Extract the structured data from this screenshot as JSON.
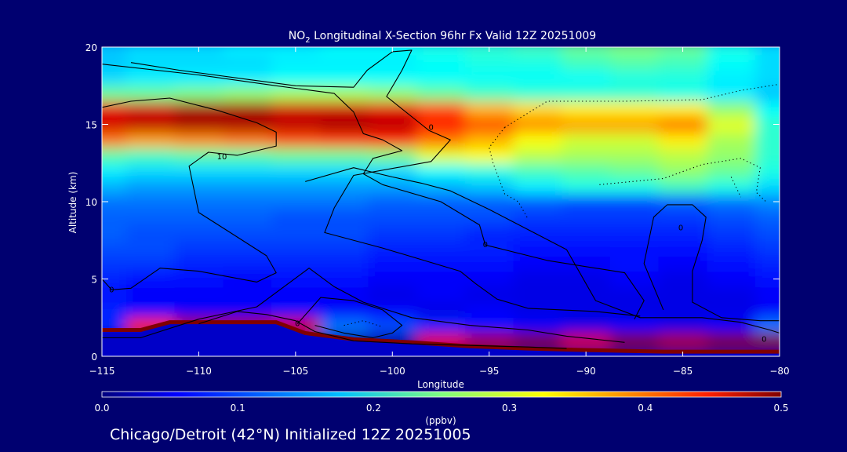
{
  "title": {
    "prefix": "NO",
    "sub": "2",
    "rest": " Longitudinal X-Section 96hr  Fx Valid 12Z 20251009"
  },
  "footer": "Chicago/Detroit (42°N) Initialized 12Z 20251005",
  "chart_data": {
    "type": "heatmap",
    "xlabel": "Longitude",
    "ylabel": "Altitude (km)",
    "xlim": [
      -115,
      -80
    ],
    "ylim": [
      0,
      20
    ],
    "x_ticks": [
      -115,
      -110,
      -105,
      -100,
      -95,
      -90,
      -85,
      -80
    ],
    "x_tick_labels": [
      "−115",
      "−110",
      "−105",
      "−100",
      "−95",
      "−90",
      "−85",
      "−80"
    ],
    "y_ticks": [
      0,
      5,
      10,
      15,
      20
    ],
    "y_tick_labels": [
      "0",
      "5",
      "10",
      "15",
      "20"
    ],
    "colorbar": {
      "label": "(ppbv)",
      "range": [
        0,
        0.5
      ],
      "ticks": [
        0,
        0.1,
        0.2,
        0.3,
        0.4,
        0.5
      ],
      "tick_labels": [
        "0.0",
        "0.1",
        "0.2",
        "0.3",
        "0.4",
        "0.5"
      ],
      "colormap": "jet"
    },
    "lon_grid": [
      -115,
      -112.5,
      -110,
      -107.5,
      -105,
      -102.5,
      -100,
      -97.5,
      -95,
      -92.5,
      -90,
      -87.5,
      -85,
      -82.5,
      -80
    ],
    "alt_grid": [
      0,
      1,
      2,
      3,
      4,
      5,
      6,
      7,
      8,
      9,
      10,
      11,
      12,
      13,
      14,
      15,
      16,
      17,
      18,
      19,
      20
    ],
    "no2_ppbv": [
      [
        0.02,
        0.02,
        0.02,
        0.02,
        0.02,
        0.02,
        0.02,
        0.02,
        0.02,
        0.02,
        0.02,
        0.02,
        0.02,
        0.02,
        0.02
      ],
      [
        0.02,
        0.02,
        0.02,
        0.02,
        0.02,
        0.02,
        0.02,
        0.45,
        0.48,
        0.5,
        0.46,
        0.5,
        0.48,
        0.5,
        0.5
      ],
      [
        0.08,
        0.42,
        0.48,
        0.48,
        0.46,
        0.12,
        0.1,
        0.08,
        0.07,
        0.06,
        0.05,
        0.06,
        0.05,
        0.06,
        0.12
      ],
      [
        0.08,
        0.07,
        0.06,
        0.06,
        0.07,
        0.06,
        0.06,
        0.05,
        0.06,
        0.05,
        0.05,
        0.05,
        0.05,
        0.05,
        0.06
      ],
      [
        0.07,
        0.06,
        0.06,
        0.06,
        0.06,
        0.06,
        0.05,
        0.06,
        0.05,
        0.05,
        0.05,
        0.05,
        0.05,
        0.05,
        0.06
      ],
      [
        0.08,
        0.07,
        0.07,
        0.06,
        0.07,
        0.07,
        0.06,
        0.06,
        0.06,
        0.05,
        0.05,
        0.06,
        0.05,
        0.06,
        0.07
      ],
      [
        0.09,
        0.09,
        0.08,
        0.08,
        0.08,
        0.08,
        0.07,
        0.07,
        0.07,
        0.06,
        0.06,
        0.07,
        0.06,
        0.07,
        0.08
      ],
      [
        0.1,
        0.1,
        0.09,
        0.09,
        0.09,
        0.09,
        0.08,
        0.08,
        0.08,
        0.07,
        0.07,
        0.07,
        0.07,
        0.08,
        0.09
      ],
      [
        0.11,
        0.1,
        0.1,
        0.1,
        0.1,
        0.1,
        0.09,
        0.09,
        0.08,
        0.08,
        0.08,
        0.08,
        0.08,
        0.09,
        0.1
      ],
      [
        0.11,
        0.11,
        0.11,
        0.11,
        0.1,
        0.1,
        0.1,
        0.1,
        0.1,
        0.09,
        0.09,
        0.09,
        0.09,
        0.1,
        0.11
      ],
      [
        0.12,
        0.12,
        0.12,
        0.12,
        0.12,
        0.12,
        0.11,
        0.11,
        0.11,
        0.11,
        0.1,
        0.1,
        0.11,
        0.12,
        0.13
      ],
      [
        0.15,
        0.14,
        0.14,
        0.14,
        0.14,
        0.14,
        0.14,
        0.15,
        0.16,
        0.18,
        0.2,
        0.2,
        0.22,
        0.2,
        0.17
      ],
      [
        0.18,
        0.17,
        0.17,
        0.17,
        0.17,
        0.17,
        0.17,
        0.19,
        0.2,
        0.22,
        0.23,
        0.24,
        0.26,
        0.24,
        0.2
      ],
      [
        0.23,
        0.22,
        0.23,
        0.23,
        0.24,
        0.24,
        0.25,
        0.3,
        0.31,
        0.28,
        0.27,
        0.27,
        0.28,
        0.26,
        0.21
      ],
      [
        0.38,
        0.36,
        0.37,
        0.38,
        0.4,
        0.41,
        0.42,
        0.38,
        0.35,
        0.31,
        0.29,
        0.29,
        0.32,
        0.27,
        0.21
      ],
      [
        0.46,
        0.47,
        0.48,
        0.48,
        0.47,
        0.48,
        0.47,
        0.43,
        0.4,
        0.37,
        0.36,
        0.36,
        0.38,
        0.3,
        0.21
      ],
      [
        0.45,
        0.46,
        0.48,
        0.48,
        0.46,
        0.46,
        0.45,
        0.4,
        0.35,
        0.33,
        0.32,
        0.32,
        0.32,
        0.26,
        0.19
      ],
      [
        0.24,
        0.24,
        0.25,
        0.26,
        0.27,
        0.27,
        0.26,
        0.24,
        0.22,
        0.21,
        0.21,
        0.21,
        0.2,
        0.18,
        0.16
      ],
      [
        0.17,
        0.18,
        0.18,
        0.18,
        0.19,
        0.19,
        0.19,
        0.19,
        0.19,
        0.19,
        0.19,
        0.2,
        0.2,
        0.18,
        0.17
      ],
      [
        0.16,
        0.17,
        0.17,
        0.17,
        0.18,
        0.18,
        0.18,
        0.19,
        0.2,
        0.2,
        0.22,
        0.23,
        0.22,
        0.19,
        0.17
      ],
      [
        0.16,
        0.17,
        0.17,
        0.18,
        0.18,
        0.19,
        0.19,
        0.2,
        0.21,
        0.22,
        0.24,
        0.25,
        0.24,
        0.2,
        0.17
      ]
    ],
    "terrain_km": [
      [
        -115,
        1.7
      ],
      [
        -113,
        1.7
      ],
      [
        -111.5,
        2.2
      ],
      [
        -106,
        2.2
      ],
      [
        -104.5,
        1.5
      ],
      [
        -102,
        1.1
      ],
      [
        -99,
        0.9
      ],
      [
        -96,
        0.65
      ],
      [
        -93,
        0.5
      ],
      [
        -90,
        0.4
      ],
      [
        -88,
        0.35
      ],
      [
        -86,
        0.3
      ],
      [
        -83,
        0.3
      ],
      [
        -80,
        0.3
      ]
    ],
    "contour_labels": [
      {
        "text": "10",
        "lon": -108.8,
        "alt": 12.9
      },
      {
        "text": "0",
        "lon": -98.0,
        "alt": 14.8
      },
      {
        "text": "0",
        "lon": -95.2,
        "alt": 7.2
      },
      {
        "text": "0",
        "lon": -104.9,
        "alt": 2.1
      },
      {
        "text": "0",
        "lon": -114.5,
        "alt": 4.3
      },
      {
        "text": "0",
        "lon": -85.1,
        "alt": 8.3
      },
      {
        "text": "0",
        "lon": -80.8,
        "alt": 1.1
      }
    ],
    "contours": [
      {
        "style": "solid",
        "points": [
          [
            -115,
            18.9
          ],
          [
            -110,
            18.2
          ],
          [
            -106,
            17.5
          ],
          [
            -103,
            17.0
          ],
          [
            -102,
            15.8
          ],
          [
            -101.5,
            14.4
          ],
          [
            -100.5,
            14.0
          ],
          [
            -99.5,
            13.3
          ],
          [
            -101,
            12.8
          ],
          [
            -101.5,
            11.8
          ],
          [
            -100.5,
            11.1
          ],
          [
            -97.5,
            10.0
          ],
          [
            -95.5,
            8.5
          ],
          [
            -95.2,
            7.2
          ],
          [
            -92,
            6.2
          ],
          [
            -88,
            5.4
          ],
          [
            -87,
            3.6
          ],
          [
            -87.5,
            2.4
          ]
        ]
      },
      {
        "style": "solid",
        "points": [
          [
            -115,
            16.1
          ],
          [
            -113.5,
            16.5
          ],
          [
            -111.5,
            16.7
          ],
          [
            -109,
            15.9
          ],
          [
            -107,
            15.1
          ],
          [
            -106,
            14.5
          ],
          [
            -106,
            13.6
          ],
          [
            -108,
            13.0
          ],
          [
            -109.5,
            13.2
          ],
          [
            -110.5,
            12.3
          ],
          [
            -110,
            9.3
          ],
          [
            -108.5,
            8.1
          ],
          [
            -106.5,
            6.5
          ],
          [
            -106,
            5.4
          ],
          [
            -107,
            4.8
          ],
          [
            -110,
            5.5
          ],
          [
            -112,
            5.7
          ],
          [
            -113.5,
            4.4
          ],
          [
            -114.5,
            4.3
          ],
          [
            -115,
            5.0
          ]
        ]
      },
      {
        "style": "solid",
        "points": [
          [
            -113.5,
            19.0
          ],
          [
            -111,
            18.5
          ],
          [
            -108,
            18.0
          ],
          [
            -105,
            17.5
          ],
          [
            -102,
            17.4
          ],
          [
            -101.3,
            18.5
          ],
          [
            -100,
            19.7
          ],
          [
            -99,
            19.8
          ],
          [
            -99.5,
            18.5
          ],
          [
            -100.3,
            16.8
          ],
          [
            -99.5,
            16.0
          ],
          [
            -98.5,
            15.0
          ],
          [
            -98.1,
            14.6
          ],
          [
            -97,
            14.0
          ],
          [
            -98,
            12.6
          ],
          [
            -102,
            11.7
          ],
          [
            -103,
            9.6
          ],
          [
            -103.5,
            8.0
          ],
          [
            -100.5,
            7.0
          ],
          [
            -96.5,
            5.5
          ],
          [
            -95.7,
            4.7
          ],
          [
            -94.6,
            3.7
          ],
          [
            -93,
            3.1
          ],
          [
            -89.5,
            2.9
          ],
          [
            -88,
            2.7
          ],
          [
            -87.2,
            2.6
          ]
        ]
      },
      {
        "style": "solid",
        "points": [
          [
            -104.5,
            11.3
          ],
          [
            -102,
            12.2
          ],
          [
            -100,
            11.6
          ],
          [
            -98.5,
            11.2
          ],
          [
            -97,
            10.7
          ],
          [
            -95,
            9.5
          ],
          [
            -93,
            8.2
          ],
          [
            -91,
            6.9
          ],
          [
            -90.5,
            5.8
          ],
          [
            -89.5,
            3.6
          ],
          [
            -87.2,
            2.5
          ],
          [
            -85.5,
            2.5
          ],
          [
            -84,
            2.5
          ],
          [
            -82,
            2.2
          ],
          [
            -80.5,
            1.7
          ],
          [
            -80,
            1.5
          ]
        ]
      },
      {
        "style": "solid",
        "points": [
          [
            -86,
            3.0
          ],
          [
            -87,
            6.0
          ],
          [
            -86.5,
            9.0
          ],
          [
            -85.8,
            9.8
          ],
          [
            -84.5,
            9.8
          ],
          [
            -83.8,
            9.0
          ],
          [
            -84,
            7.5
          ],
          [
            -84.5,
            5.5
          ],
          [
            -84.5,
            3.5
          ],
          [
            -83,
            2.5
          ],
          [
            -81,
            2.3
          ],
          [
            -80,
            2.3
          ]
        ]
      },
      {
        "style": "solid",
        "points": [
          [
            -115,
            1.2
          ],
          [
            -113,
            1.2
          ],
          [
            -110,
            2.4
          ],
          [
            -107,
            3.2
          ],
          [
            -104.3,
            5.7
          ],
          [
            -103,
            4.5
          ],
          [
            -101.5,
            3.5
          ],
          [
            -99,
            2.5
          ],
          [
            -96,
            2.0
          ],
          [
            -93,
            1.7
          ],
          [
            -91,
            1.3
          ],
          [
            -88,
            0.9
          ]
        ]
      },
      {
        "style": "solid",
        "points": [
          [
            -110,
            2.1
          ],
          [
            -108,
            2.9
          ],
          [
            -106.5,
            2.7
          ],
          [
            -105,
            2.3
          ],
          [
            -104,
            1.6
          ],
          [
            -102,
            1.0
          ],
          [
            -99,
            0.8
          ],
          [
            -96,
            0.7
          ],
          [
            -93,
            0.6
          ],
          [
            -91,
            0.5
          ]
        ]
      },
      {
        "style": "solid",
        "points": [
          [
            -104.9,
            2.1
          ],
          [
            -103.7,
            3.8
          ],
          [
            -102,
            3.6
          ],
          [
            -100.5,
            3.0
          ],
          [
            -99.5,
            2.0
          ],
          [
            -100,
            1.5
          ],
          [
            -101,
            1.2
          ],
          [
            -102.5,
            1.5
          ],
          [
            -104,
            2.0
          ]
        ]
      },
      {
        "style": "dotted",
        "points": [
          [
            -94.2,
            14.8
          ],
          [
            -95,
            13.5
          ],
          [
            -94.8,
            12.5
          ],
          [
            -94.2,
            10.5
          ],
          [
            -93.5,
            10.0
          ],
          [
            -93.0,
            8.9
          ]
        ]
      },
      {
        "style": "dotted",
        "points": [
          [
            -94.2,
            14.8
          ],
          [
            -92,
            16.5
          ],
          [
            -88,
            16.5
          ],
          [
            -84,
            16.6
          ],
          [
            -82,
            17.2
          ],
          [
            -80,
            17.6
          ]
        ]
      },
      {
        "style": "dotted",
        "points": [
          [
            -89.3,
            11.1
          ],
          [
            -86,
            11.5
          ],
          [
            -84,
            12.4
          ],
          [
            -82,
            12.8
          ],
          [
            -81,
            12.2
          ],
          [
            -81.2,
            10.6
          ],
          [
            -80.7,
            10.0
          ]
        ]
      },
      {
        "style": "dotted",
        "points": [
          [
            -82.5,
            11.6
          ],
          [
            -82.0,
            10.3
          ]
        ]
      },
      {
        "style": "dotted",
        "points": [
          [
            -102.5,
            2.0
          ],
          [
            -101.5,
            2.3
          ],
          [
            -100.5,
            1.9
          ]
        ]
      }
    ]
  }
}
